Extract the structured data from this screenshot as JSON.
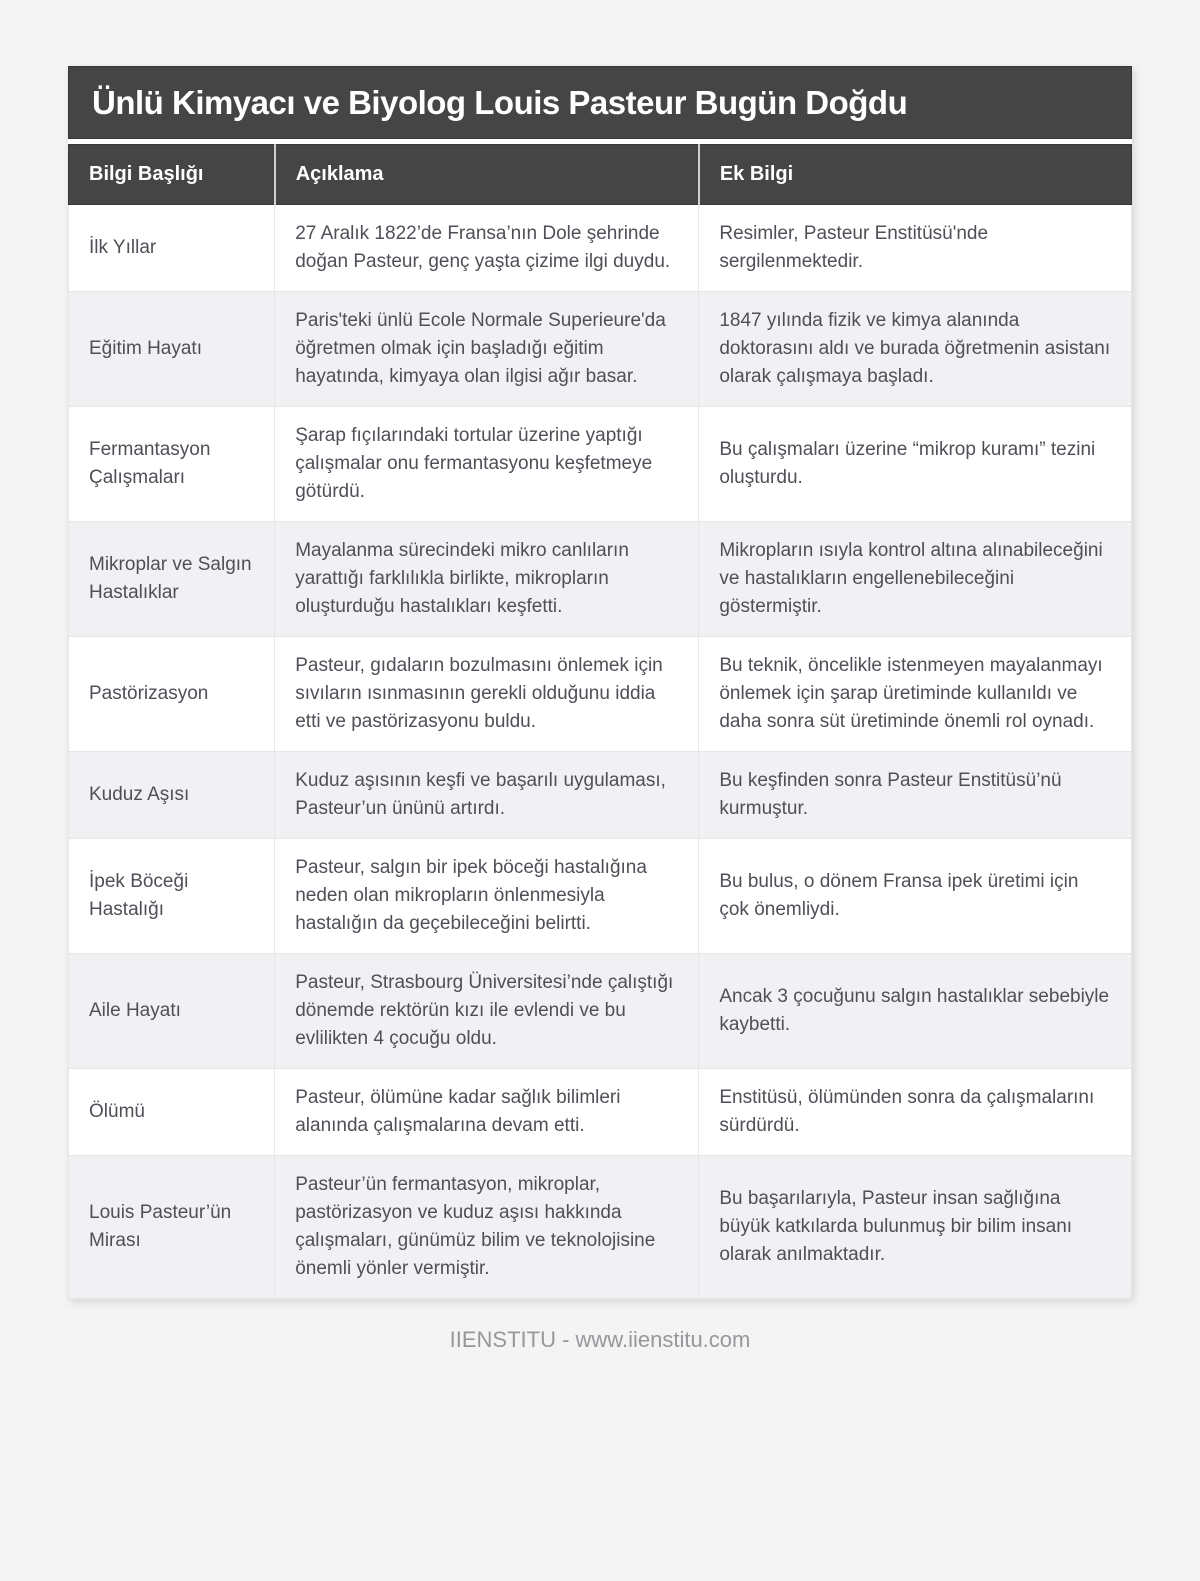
{
  "page": {
    "title": "Ünlü Kimyacı ve Biyolog Louis Pasteur Bugün Doğdu",
    "footer": "IIENSTITU - www.iienstitu.com"
  },
  "table": {
    "columns": [
      "Bilgi Başlığı",
      "Açıklama",
      "Ek Bilgi"
    ],
    "rows": [
      {
        "title": "İlk Yıllar",
        "description": "27 Aralık 1822’de Fransa’nın Dole şehrinde doğan Pasteur, genç yaşta çizime ilgi duydu.",
        "extra": "Resimler, Pasteur Enstitüsü'nde sergilenmektedir."
      },
      {
        "title": "Eğitim Hayatı",
        "description": "Paris'teki ünlü Ecole Normale Superieure'da öğretmen olmak için başladığı eğitim hayatında, kimyaya olan ilgisi ağır basar.",
        "extra": "1847 yılında fizik ve kimya alanında doktorasını aldı ve burada öğretmenin asistanı olarak çalışmaya başladı."
      },
      {
        "title": "Fermantasyon Çalışmaları",
        "description": "Şarap fıçılarındaki tortular üzerine yaptığı çalışmalar onu fermantasyonu keşfetmeye götürdü.",
        "extra": "Bu çalışmaları üzerine “mikrop kuramı” tezini oluşturdu."
      },
      {
        "title": "Mikroplar ve Salgın Hastalıklar",
        "description": "Mayalanma sürecindeki mikro canlıların yarattığı farklılıkla birlikte, mikropların oluşturduğu hastalıkları keşfetti.",
        "extra": "Mikropların ısıyla kontrol altına alınabileceğini ve hastalıkların engellenebileceğini göstermiştir."
      },
      {
        "title": "Pastörizasyon",
        "description": "Pasteur, gıdaların bozulmasını önlemek için sıvıların ısınmasının gerekli olduğunu iddia etti ve pastörizasyonu buldu.",
        "extra": "Bu teknik, öncelikle istenmeyen mayalanmayı önlemek için şarap üretiminde kullanıldı ve daha sonra süt üretiminde önemli rol oynadı."
      },
      {
        "title": "Kuduz Aşısı",
        "description": "Kuduz aşısının keşfi ve başarılı uygulaması, Pasteur’un ününü artırdı.",
        "extra": "Bu keşfinden sonra Pasteur Enstitüsü’nü kurmuştur."
      },
      {
        "title": "İpek Böceği Hastalığı",
        "description": "Pasteur, salgın bir ipek böceği hastalığına neden olan mikropların önlenmesiyla hastalığın da geçebileceğini belirtti.",
        "extra": "Bu bulus, o dönem Fransa ipek üretimi için çok önemliydi."
      },
      {
        "title": "Aile Hayatı",
        "description": "Pasteur, Strasbourg Üniversitesi’nde çalıştığı dönemde rektörün kızı ile evlendi ve bu evlilikten 4 çocuğu oldu.",
        "extra": "Ancak 3 çocuğunu salgın hastalıklar sebebiyle kaybetti."
      },
      {
        "title": "Ölümü",
        "description": "Pasteur, ölümüne kadar sağlık bilimleri alanında çalışmalarına devam etti.",
        "extra": "Enstitüsü, ölümünden sonra da çalışmalarını sürdürdü."
      },
      {
        "title": "Louis Pasteur’ün Mirası",
        "description": "Pasteur’ün fermantasyon, mikroplar, pastörizasyon ve kuduz aşısı hakkında çalışmaları, günümüz bilim ve teknolojisine önemli yönler vermiştir.",
        "extra": "Bu başarılarıyla, Pasteur insan sağlığına büyük katkılarda bulunmuş bir bilim insanı olarak anılmaktadır."
      }
    ]
  },
  "colors": {
    "page_bg": "#f4f4f5",
    "bar_bg": "#454545",
    "bar_text": "#ffffff",
    "row_alt_bg": "#f1f1f3",
    "row_bg": "#ffffff",
    "body_text": "#4f4f57",
    "grid_line": "#e6e6e9",
    "footer_text": "#97979c"
  }
}
